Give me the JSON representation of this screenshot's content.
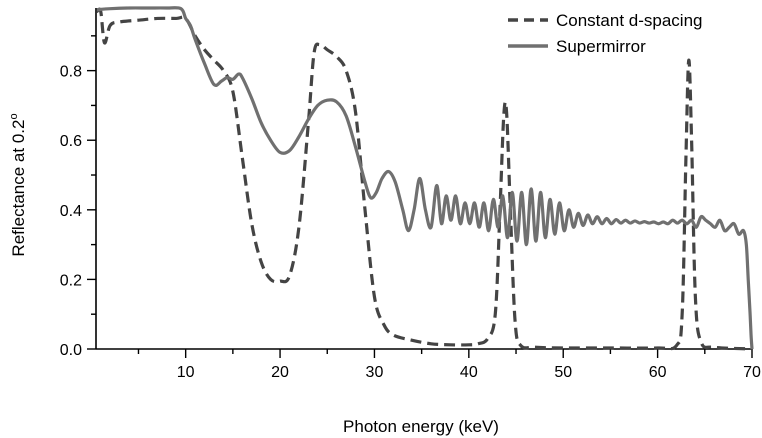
{
  "chart_data": {
    "type": "line",
    "title": "",
    "xlabel": "Photon energy (keV)",
    "ylabel_main": "Reflectance at 0.2",
    "ylabel_sup": "o",
    "xlim": [
      0.5,
      70
    ],
    "ylim": [
      0,
      0.98
    ],
    "xticks": [
      10,
      20,
      30,
      40,
      50,
      60,
      70
    ],
    "yticks": [
      0.0,
      0.2,
      0.4,
      0.6,
      0.8
    ],
    "xtick_labels": [
      "10",
      "20",
      "30",
      "40",
      "50",
      "60",
      "70"
    ],
    "ytick_labels": [
      "0.0",
      "0.2",
      "0.4",
      "0.6",
      "0.8"
    ],
    "legend_position": "top-right",
    "grid": false,
    "series": [
      {
        "name": "Constant d-spacing",
        "style": "dashed",
        "color": "#444444",
        "x": [
          0.6,
          1.0,
          1.4,
          2.0,
          3.0,
          5.0,
          7.0,
          9.0,
          10.0,
          11.0,
          12.0,
          13.0,
          14.0,
          15.0,
          16.0,
          17.0,
          18.0,
          19.0,
          20.0,
          21.0,
          22.0,
          23.0,
          23.6,
          24.2,
          25.0,
          26.0,
          27.0,
          28.0,
          29.0,
          30.0,
          31.0,
          32.0,
          34.0,
          36.0,
          38.0,
          40.0,
          41.0,
          42.0,
          42.8,
          43.3,
          43.7,
          44.0,
          44.4,
          44.9,
          45.5,
          47.0,
          50.0,
          55.0,
          60.0,
          62.0,
          62.6,
          63.0,
          63.3,
          63.6,
          64.0,
          64.6,
          66.0,
          70.0
        ],
        "y": [
          0.97,
          0.97,
          0.88,
          0.93,
          0.94,
          0.945,
          0.95,
          0.95,
          0.95,
          0.9,
          0.86,
          0.83,
          0.8,
          0.74,
          0.55,
          0.36,
          0.25,
          0.2,
          0.195,
          0.21,
          0.35,
          0.65,
          0.85,
          0.875,
          0.86,
          0.84,
          0.8,
          0.68,
          0.4,
          0.15,
          0.07,
          0.04,
          0.025,
          0.015,
          0.012,
          0.012,
          0.015,
          0.03,
          0.1,
          0.4,
          0.67,
          0.68,
          0.4,
          0.08,
          0.01,
          0.005,
          0.003,
          0.003,
          0.003,
          0.01,
          0.1,
          0.55,
          0.83,
          0.6,
          0.15,
          0.02,
          0.005,
          0.0
        ]
      },
      {
        "name": "Supermirror",
        "style": "solid",
        "color": "#707070",
        "x": [
          0.6,
          2.0,
          4.0,
          6.0,
          8.0,
          9.5,
          10.0,
          10.5,
          11.0,
          12.0,
          13.0,
          13.8,
          14.4,
          15.0,
          15.6,
          16.0,
          17.0,
          18.0,
          19.0,
          20.0,
          21.0,
          22.0,
          23.0,
          24.0,
          25.0,
          26.0,
          27.0,
          28.0,
          29.0,
          29.6,
          30.2,
          30.8,
          31.5,
          32.2,
          33.0,
          33.6,
          34.2,
          34.8,
          35.4,
          36.0,
          36.6,
          37.1,
          37.6,
          38.1,
          38.6,
          39.1,
          39.6,
          40.1,
          40.6,
          41.1,
          41.6,
          42.1,
          42.6,
          43.1,
          43.6,
          44.1,
          44.6,
          45.1,
          45.6,
          46.1,
          46.6,
          47.1,
          47.6,
          48.1,
          48.6,
          49.1,
          49.6,
          50.1,
          50.6,
          51.1,
          51.6,
          52.1,
          52.6,
          53.1,
          53.6,
          54.1,
          54.6,
          55.1,
          55.6,
          56.1,
          56.6,
          57.1,
          57.6,
          58.1,
          58.6,
          59.1,
          59.6,
          60.1,
          60.6,
          61.1,
          61.6,
          62.1,
          62.6,
          63.1,
          63.6,
          64.1,
          64.6,
          65.1,
          65.6,
          66.1,
          66.6,
          67.1,
          67.6,
          68.1,
          68.6,
          69.1,
          69.4,
          69.6,
          69.8,
          69.9,
          70.0
        ],
        "y": [
          0.975,
          0.978,
          0.98,
          0.98,
          0.98,
          0.978,
          0.95,
          0.93,
          0.89,
          0.82,
          0.76,
          0.77,
          0.78,
          0.775,
          0.79,
          0.78,
          0.72,
          0.65,
          0.6,
          0.565,
          0.57,
          0.61,
          0.66,
          0.7,
          0.715,
          0.71,
          0.67,
          0.58,
          0.48,
          0.435,
          0.45,
          0.49,
          0.51,
          0.48,
          0.4,
          0.34,
          0.4,
          0.49,
          0.4,
          0.35,
          0.47,
          0.36,
          0.44,
          0.37,
          0.44,
          0.36,
          0.42,
          0.36,
          0.42,
          0.35,
          0.42,
          0.34,
          0.43,
          0.35,
          0.44,
          0.32,
          0.45,
          0.31,
          0.45,
          0.3,
          0.46,
          0.31,
          0.45,
          0.32,
          0.43,
          0.33,
          0.42,
          0.34,
          0.4,
          0.35,
          0.39,
          0.355,
          0.385,
          0.36,
          0.38,
          0.36,
          0.375,
          0.36,
          0.372,
          0.362,
          0.37,
          0.362,
          0.368,
          0.362,
          0.366,
          0.362,
          0.365,
          0.36,
          0.365,
          0.36,
          0.37,
          0.362,
          0.37,
          0.36,
          0.37,
          0.35,
          0.38,
          0.37,
          0.36,
          0.35,
          0.37,
          0.34,
          0.35,
          0.36,
          0.33,
          0.34,
          0.3,
          0.2,
          0.1,
          0.04,
          0.0
        ]
      }
    ]
  }
}
